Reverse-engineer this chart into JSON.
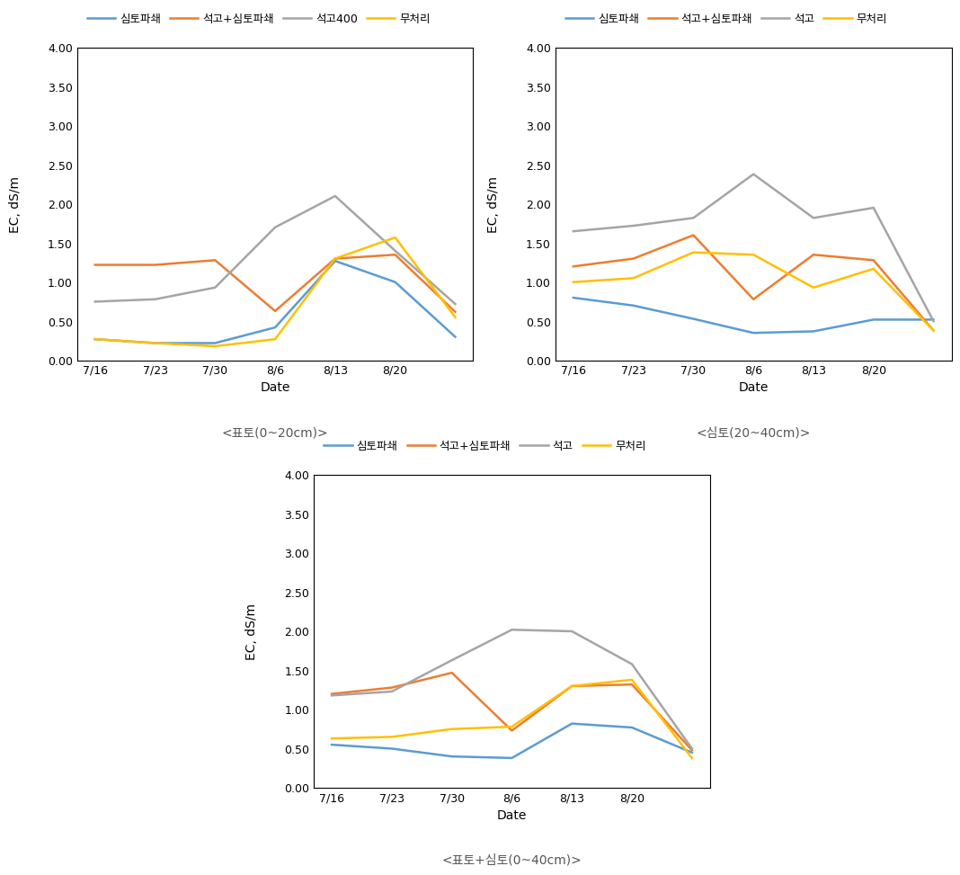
{
  "x_labels": [
    "7/16",
    "7/23",
    "7/30",
    "8/6",
    "8/13",
    "8/20",
    ""
  ],
  "x_positions": [
    0,
    1,
    2,
    3,
    4,
    5,
    6
  ],
  "chart1": {
    "title": "<표토(0~20cm)>",
    "legend_labels": [
      "심토파쇄",
      "석고+심토파쇄",
      "석고400",
      "무처리"
    ],
    "series": {
      "심토파쇄": [
        0.27,
        0.22,
        0.22,
        0.42,
        1.27,
        1.0,
        0.3
      ],
      "석고+심토파쇄": [
        1.22,
        1.22,
        1.28,
        0.63,
        1.3,
        1.35,
        0.62
      ],
      "석고400": [
        0.75,
        0.78,
        0.93,
        1.7,
        2.1,
        1.4,
        0.72
      ],
      "무처리": [
        0.27,
        0.22,
        0.18,
        0.27,
        1.3,
        1.57,
        0.55
      ]
    }
  },
  "chart2": {
    "title": "<심토(20~40cm)>",
    "legend_labels": [
      "심토파쇄",
      "석고+심토파쇄",
      "석고",
      "무처리"
    ],
    "series": {
      "심토파쇄": [
        0.8,
        0.7,
        0.53,
        0.35,
        0.37,
        0.52,
        0.52
      ],
      "석고+심토파쇄": [
        1.2,
        1.3,
        1.6,
        0.78,
        1.35,
        1.28,
        0.38
      ],
      "석고": [
        1.65,
        1.72,
        1.82,
        2.38,
        1.82,
        1.95,
        0.5
      ],
      "무처리": [
        1.0,
        1.05,
        1.38,
        1.35,
        0.93,
        1.17,
        0.38
      ]
    }
  },
  "chart3": {
    "title": "<표토+심토(0~40cm)>",
    "legend_labels": [
      "심토파쇄",
      "석고+심토파쇄",
      "석고",
      "무처리"
    ],
    "series": {
      "심토파쇄": [
        0.55,
        0.5,
        0.4,
        0.38,
        0.82,
        0.77,
        0.45
      ],
      "석고+심토파쇄": [
        1.2,
        1.28,
        1.47,
        0.73,
        1.3,
        1.32,
        0.48
      ],
      "석고": [
        1.18,
        1.23,
        1.63,
        2.02,
        2.0,
        1.58,
        0.5
      ],
      "무처리": [
        0.63,
        0.65,
        0.75,
        0.78,
        1.3,
        1.38,
        0.38
      ]
    }
  },
  "colors": {
    "심토파쇄": "#5B9BD5",
    "석고+심토파쇄": "#ED7D31",
    "석고400": "#A5A5A5",
    "석고": "#A5A5A5",
    "무처리": "#FFC000"
  },
  "ylabel": "EC, dS/m",
  "xlabel": "Date",
  "ylim": [
    0.0,
    4.0
  ],
  "yticks": [
    0.0,
    0.5,
    1.0,
    1.5,
    2.0,
    2.5,
    3.0,
    3.5,
    4.0
  ],
  "linewidth": 1.8
}
